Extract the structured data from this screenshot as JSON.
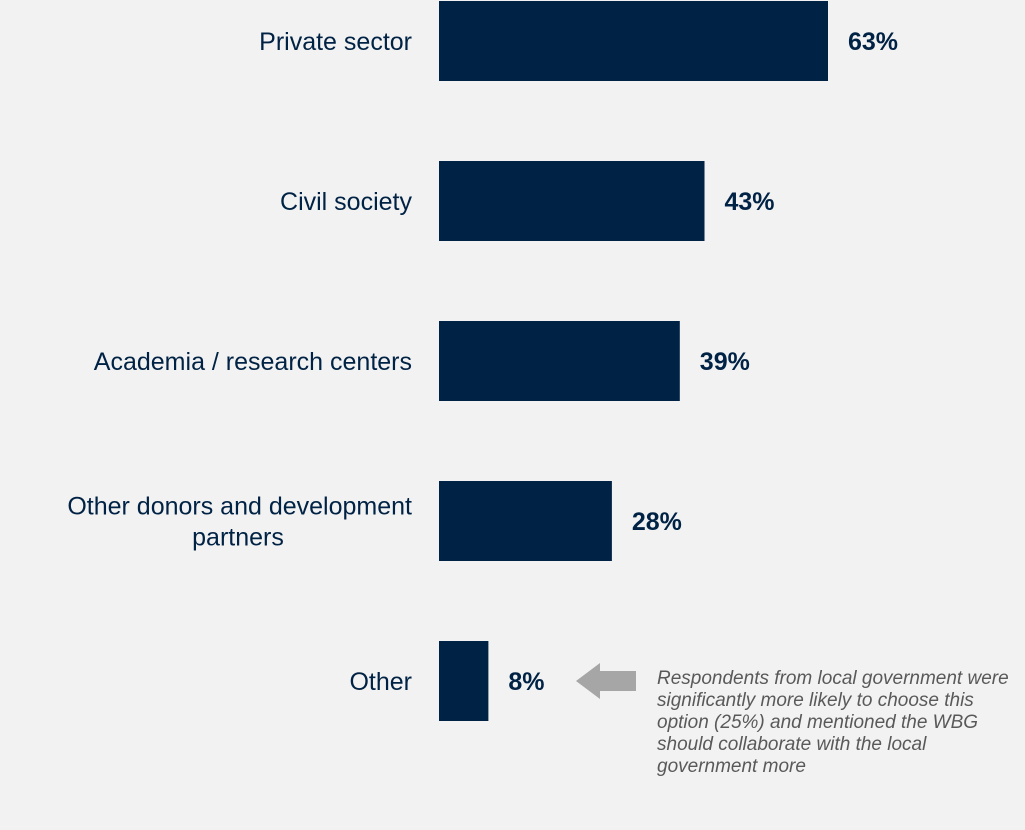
{
  "chart_data": {
    "type": "bar",
    "orientation": "horizontal",
    "categories": [
      [
        "Private sector"
      ],
      [
        "Civil society"
      ],
      [
        "Academia / research centers"
      ],
      [
        "Other donors and development",
        "partners"
      ],
      [
        "Other"
      ]
    ],
    "values": [
      63,
      43,
      39,
      28,
      8
    ],
    "value_labels": [
      "63%",
      "43%",
      "39%",
      "28%",
      "8%"
    ],
    "xlim": [
      0,
      100
    ],
    "bar_color": "#002244",
    "label_color": "#002244",
    "grid": false,
    "legend": "none",
    "annotation": {
      "target_category_index": 4,
      "arrow_color": "#a6a6a6",
      "text": "Respondents from local government were significantly more likely to choose this option (25%) and mentioned the WBG should collaborate with the local government more"
    }
  }
}
